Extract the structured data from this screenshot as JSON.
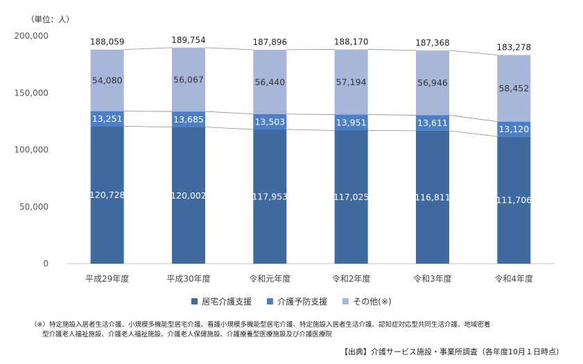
{
  "unit_label": "（単位：人）",
  "chart_data": {
    "type": "bar",
    "stacked": true,
    "categories": [
      "平成29年度",
      "平成30年度",
      "令和元年度",
      "令和2年度",
      "令和3年度",
      "令和4年度"
    ],
    "series": [
      {
        "name": "居宅介護支援",
        "color": "#3f6aa0",
        "values": [
          120728,
          120002,
          117953,
          117025,
          116811,
          111706
        ]
      },
      {
        "name": "介護予防支援",
        "color": "#4c7fc4",
        "values": [
          13251,
          13685,
          13503,
          13951,
          13611,
          13120
        ]
      },
      {
        "name": "その他(※)",
        "color": "#a8b6d9",
        "values": [
          54080,
          56067,
          56440,
          57194,
          56946,
          58452
        ]
      }
    ],
    "totals": [
      188059,
      189754,
      187896,
      188170,
      187368,
      183278
    ],
    "ylim": [
      0,
      200000
    ],
    "yticks": [
      0,
      50000,
      100000,
      150000,
      200000
    ],
    "ytick_labels": [
      "0",
      "50,000",
      "100,000",
      "150,000",
      "200,000"
    ],
    "grid": false
  },
  "footnote": {
    "line1": "（※）特定施設入居者生活介護、小規模多機能型居宅介護、看護小規模多機能型居宅介護、特定施設入居者生活介護、認知症対応型共同生活介護、地域密着",
    "line2": "型介護老人福祉施設、介護老人福祉施設、介護老人保健施設、介護療養型医療施設及び介護医療院"
  },
  "source": "【出典】介護サービス施設・事業所調査（各年度10月１日時点）"
}
